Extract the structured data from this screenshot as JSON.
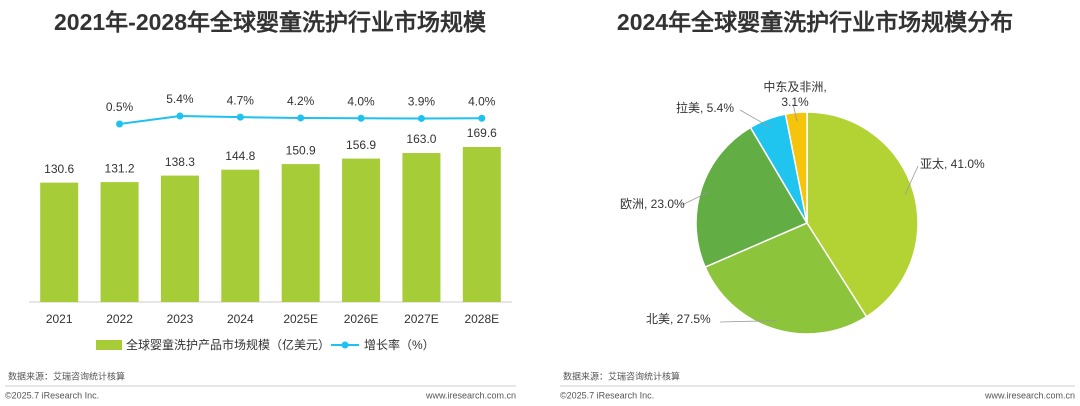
{
  "chart_data": [
    {
      "type": "bar",
      "title": "2021年-2028年全球婴童洗护行业市场规模",
      "categories": [
        "2021",
        "2022",
        "2023",
        "2024",
        "2025E",
        "2026E",
        "2027E",
        "2028E"
      ],
      "series": [
        {
          "name": "全球婴童洗护产品市场规模（亿美元）",
          "type": "bar",
          "color": "#a6cc38",
          "values": [
            130.6,
            131.2,
            138.3,
            144.8,
            150.9,
            156.9,
            163.0,
            169.6
          ],
          "value_labels": [
            "130.6",
            "131.2",
            "138.3",
            "144.8",
            "150.9",
            "156.9",
            "163.0",
            "169.6"
          ]
        },
        {
          "name": "增长率（%）",
          "type": "line",
          "color": "#1ec1ef",
          "values": [
            null,
            0.5,
            5.4,
            4.7,
            4.2,
            4.0,
            3.9,
            4.0
          ],
          "value_labels": [
            null,
            "0.5%",
            "5.4%",
            "4.7%",
            "4.2%",
            "4.0%",
            "3.9%",
            "4.0%"
          ]
        }
      ]
    },
    {
      "type": "pie",
      "title": "2024年全球婴童洗护行业市场规模分布",
      "values": [
        41.0,
        27.5,
        23.0,
        5.4,
        3.1
      ],
      "value_labels": [
        "亚太, 41.0%",
        "北美, 27.5%",
        "欧洲, 23.0%",
        "拉美, 5.4%",
        "中东及非洲, 3.1%"
      ],
      "colors": [
        "#b3d334",
        "#8cc43c",
        "#63ad45",
        "#1fc4ef",
        "#f6c40a"
      ]
    }
  ],
  "footers": [
    {
      "source": "数据来源：艾瑞咨询统计核算",
      "copyright": "©2025.7 iResearch Inc.",
      "url": "www.iresearch.com.cn"
    },
    {
      "source": "数据来源：艾瑞咨询统计核算",
      "copyright": "©2025.7 iResearch Inc.",
      "url": "www.iresearch.com.cn"
    }
  ]
}
